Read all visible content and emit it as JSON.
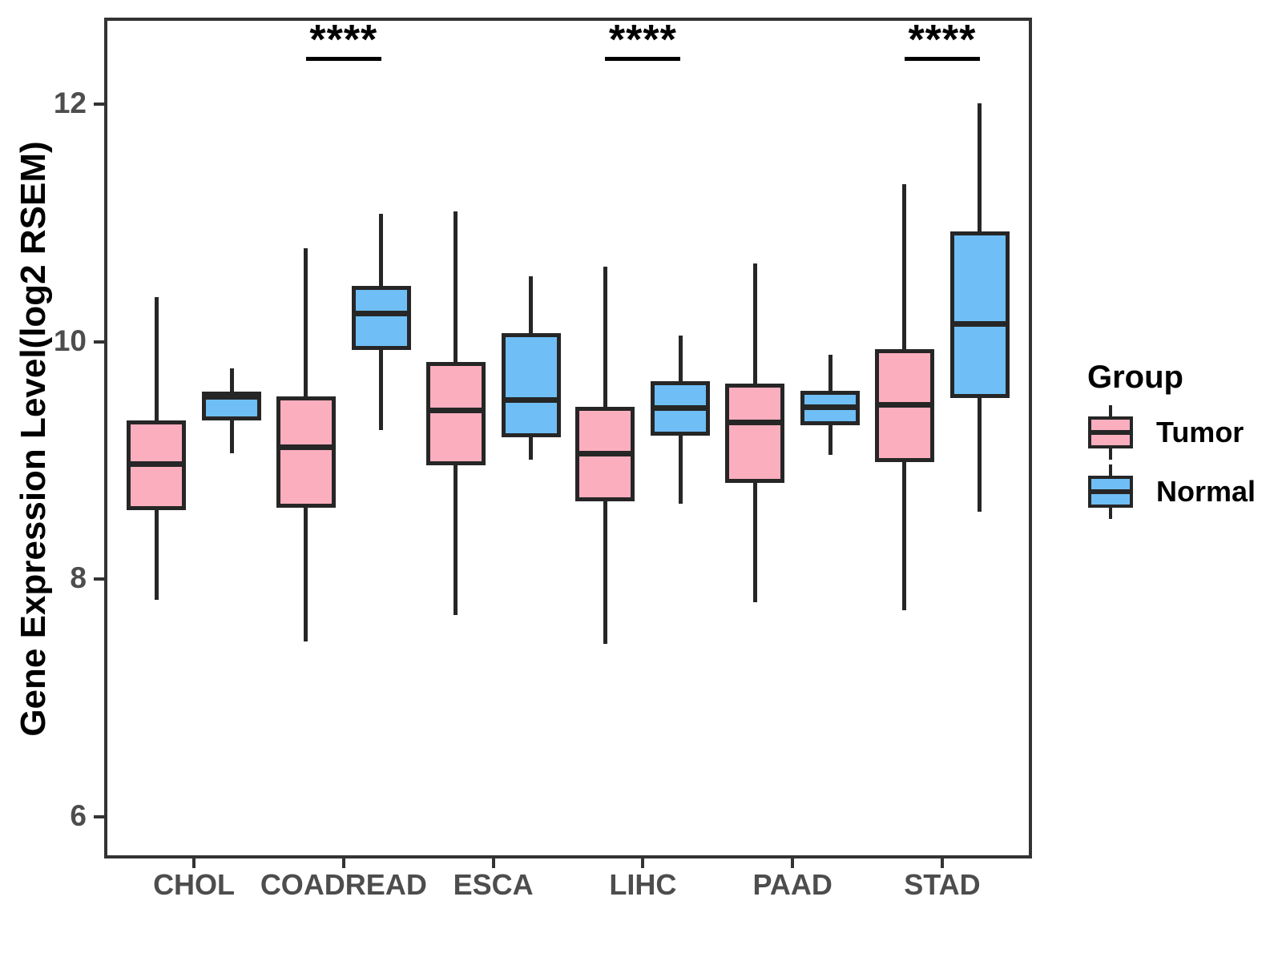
{
  "figure": {
    "y_axis_title": "Gene Expression Level(log2 RSEM)",
    "legend": {
      "title": "Group",
      "items": [
        {
          "label": "Tumor",
          "color": "#FBAEBE"
        },
        {
          "label": "Normal",
          "color": "#6FBEF5"
        }
      ]
    }
  },
  "style": {
    "box_border_color": "#262626",
    "axis_color": "#333333",
    "tick_label_color": "#4D4D4D",
    "annotation_color": "#000000",
    "background_color": "#FFFFFF"
  },
  "chart_data": {
    "type": "boxplot",
    "title": "",
    "xlabel": "",
    "ylabel": "Gene Expression Level(log2 RSEM)",
    "categories": [
      "CHOL",
      "COADREAD",
      "ESCA",
      "LIHC",
      "PAAD",
      "STAD"
    ],
    "yticks": [
      6,
      8,
      10,
      12
    ],
    "ylim": [
      5.65,
      12.73
    ],
    "grid": false,
    "legend_position": "right",
    "series": [
      {
        "name": "Tumor",
        "color": "#FBAEBE",
        "boxes": [
          {
            "category": "CHOL",
            "whisker_low": 7.83,
            "q1": 8.58,
            "median": 8.97,
            "q3": 9.34,
            "whisker_high": 10.38
          },
          {
            "category": "COADREAD",
            "whisker_low": 7.48,
            "q1": 8.6,
            "median": 9.11,
            "q3": 9.54,
            "whisker_high": 10.79
          },
          {
            "category": "ESCA",
            "whisker_low": 7.7,
            "q1": 8.96,
            "median": 9.42,
            "q3": 9.83,
            "whisker_high": 11.1
          },
          {
            "category": "LIHC",
            "whisker_low": 7.46,
            "q1": 8.66,
            "median": 9.06,
            "q3": 9.45,
            "whisker_high": 10.63
          },
          {
            "category": "PAAD",
            "whisker_low": 7.81,
            "q1": 8.81,
            "median": 9.32,
            "q3": 9.65,
            "whisker_high": 10.66
          },
          {
            "category": "STAD",
            "whisker_low": 7.74,
            "q1": 8.99,
            "median": 9.47,
            "q3": 9.94,
            "whisker_high": 11.33
          }
        ]
      },
      {
        "name": "Normal",
        "color": "#6FBEF5",
        "boxes": [
          {
            "category": "CHOL",
            "whisker_low": 9.06,
            "q1": 9.34,
            "median": 9.54,
            "q3": 9.58,
            "whisker_high": 9.78
          },
          {
            "category": "COADREAD",
            "whisker_low": 9.26,
            "q1": 9.93,
            "median": 10.24,
            "q3": 10.47,
            "whisker_high": 11.08
          },
          {
            "category": "ESCA",
            "whisker_low": 9.01,
            "q1": 9.2,
            "median": 9.51,
            "q3": 10.07,
            "whisker_high": 10.55
          },
          {
            "category": "LIHC",
            "whisker_low": 8.64,
            "q1": 9.21,
            "median": 9.44,
            "q3": 9.67,
            "whisker_high": 10.05
          },
          {
            "category": "PAAD",
            "whisker_low": 9.05,
            "q1": 9.3,
            "median": 9.45,
            "q3": 9.59,
            "whisker_high": 9.89
          },
          {
            "category": "STAD",
            "whisker_low": 8.57,
            "q1": 9.53,
            "median": 10.15,
            "q3": 10.93,
            "whisker_high": 12.01
          }
        ]
      }
    ],
    "annotations": [
      {
        "category": "COADREAD",
        "label": "****"
      },
      {
        "category": "LIHC",
        "label": "****"
      },
      {
        "category": "STAD",
        "label": "****"
      }
    ]
  }
}
